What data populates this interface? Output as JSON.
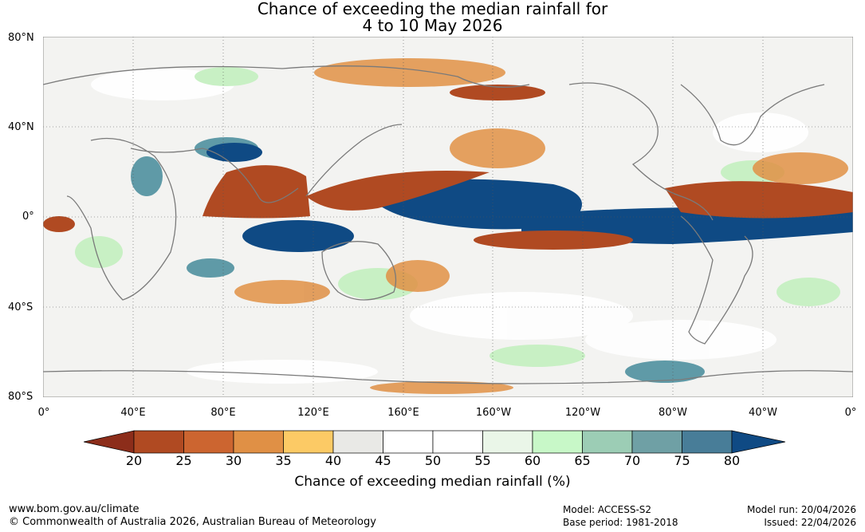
{
  "title_line1": "Chance of exceeding the median rainfall for",
  "title_line2": "4 to 10 May 2026",
  "lat_labels": [
    "80°N",
    "40°N",
    "0°",
    "40°S",
    "80°S"
  ],
  "lon_labels": [
    "0°",
    "40°E",
    "80°E",
    "120°E",
    "160°E",
    "160°W",
    "120°W",
    "80°W",
    "40°W",
    "0°"
  ],
  "colorbar": {
    "ticks": [
      "20",
      "25",
      "30",
      "35",
      "40",
      "45",
      "50",
      "55",
      "60",
      "65",
      "70",
      "75",
      "80"
    ],
    "under_color": "#8c2d1a",
    "over_color": "#0f4a84",
    "colors": [
      "#b04a22",
      "#cc6530",
      "#e09045",
      "#fcca65",
      "#e9e9e6",
      "#ffffff",
      "#ffffff",
      "#eaf6e8",
      "#c8f8c8",
      "#9ccdb5",
      "#6fa0a5",
      "#487d98"
    ],
    "label": "Chance of exceeding median rainfall (%)"
  },
  "footer": {
    "url": "www.bom.gov.au/climate",
    "copyright": "© Commonwealth of Australia 2026, Australian Bureau of Meteorology",
    "model": "Model: ACCESS-S2",
    "base_period": "Base period: 1981-2018",
    "model_run": "Model run: 20/04/2026",
    "issued": "Issued: 22/04/2026"
  }
}
